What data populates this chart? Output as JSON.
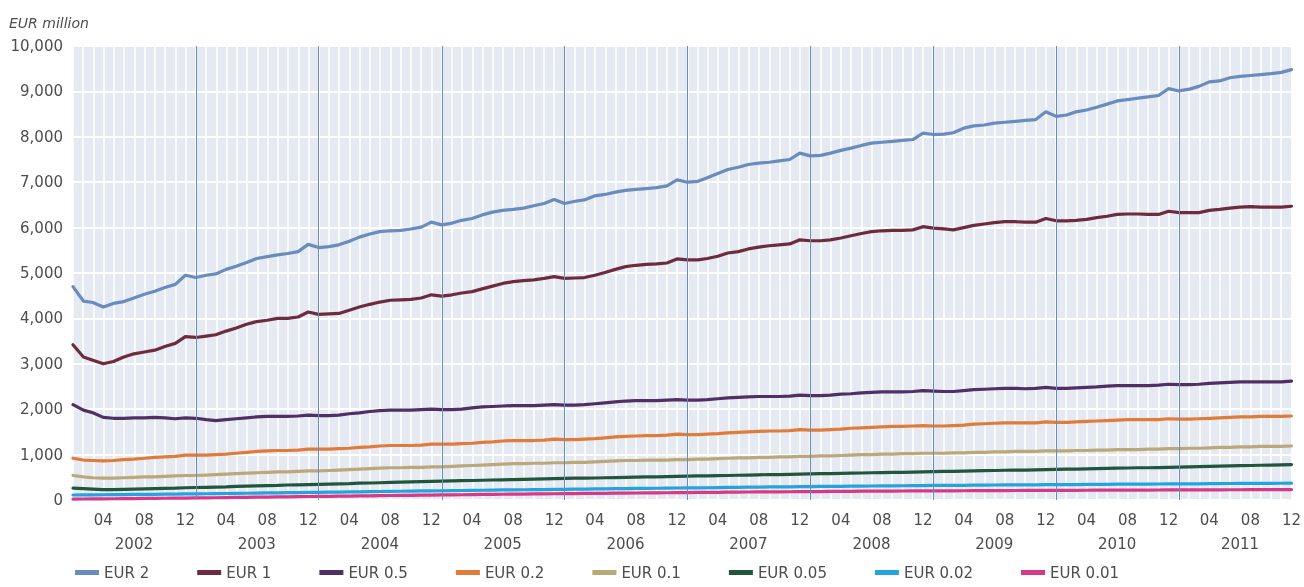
{
  "chart_data": {
    "type": "line",
    "ylabel": "EUR million",
    "legend": "bottom",
    "grid": true,
    "marker": "none",
    "line_style": "solid",
    "xlim": [
      "2002-01",
      "2011-12"
    ],
    "xticks": [
      {
        "value": "2002-04",
        "label": "04"
      },
      {
        "value": "2002-08",
        "label": "08"
      },
      {
        "value": "2002-12",
        "label": "12"
      },
      {
        "value": "2003-04",
        "label": "04"
      },
      {
        "value": "2003-08",
        "label": "08"
      },
      {
        "value": "2003-12",
        "label": "12"
      },
      {
        "value": "2004-04",
        "label": "04"
      },
      {
        "value": "2004-08",
        "label": "08"
      },
      {
        "value": "2004-12",
        "label": "12"
      },
      {
        "value": "2005-04",
        "label": "04"
      },
      {
        "value": "2005-08",
        "label": "08"
      },
      {
        "value": "2005-12",
        "label": "12"
      },
      {
        "value": "2006-04",
        "label": "04"
      },
      {
        "value": "2006-08",
        "label": "08"
      },
      {
        "value": "2006-12",
        "label": "12"
      },
      {
        "value": "2007-04",
        "label": "04"
      },
      {
        "value": "2007-08",
        "label": "08"
      },
      {
        "value": "2007-12",
        "label": "12"
      },
      {
        "value": "2008-04",
        "label": "04"
      },
      {
        "value": "2008-08",
        "label": "08"
      },
      {
        "value": "2008-12",
        "label": "12"
      },
      {
        "value": "2009-04",
        "label": "04"
      },
      {
        "value": "2009-08",
        "label": "08"
      },
      {
        "value": "2009-12",
        "label": "12"
      },
      {
        "value": "2010-04",
        "label": "04"
      },
      {
        "value": "2010-08",
        "label": "08"
      },
      {
        "value": "2010-12",
        "label": "12"
      },
      {
        "value": "2011-04",
        "label": "04"
      },
      {
        "value": "2011-08",
        "label": "08"
      },
      {
        "value": "2011-12",
        "label": "12"
      }
    ],
    "x2lim": [
      "2002-01",
      "2011-12"
    ],
    "x2ticks": [
      {
        "value": "2002-07",
        "label": "2002"
      },
      {
        "value": "2003-07",
        "label": "2003"
      },
      {
        "value": "2004-07",
        "label": "2004"
      },
      {
        "value": "2005-07",
        "label": "2005"
      },
      {
        "value": "2006-07",
        "label": "2006"
      },
      {
        "value": "2007-07",
        "label": "2007"
      },
      {
        "value": "2008-07",
        "label": "2008"
      },
      {
        "value": "2009-07",
        "label": "2009"
      },
      {
        "value": "2010-07",
        "label": "2010"
      },
      {
        "value": "2011-07",
        "label": "2011"
      }
    ],
    "ylim": [
      0,
      10000
    ],
    "yticks": [
      0,
      {
        "value": 1000,
        "label": "1,000"
      },
      {
        "value": 2000,
        "label": "2,000"
      },
      {
        "value": 3000,
        "label": "3,000"
      },
      {
        "value": 4000,
        "label": "4,000"
      },
      {
        "value": 5000,
        "label": "5,000"
      },
      {
        "value": 6000,
        "label": "6,000"
      },
      {
        "value": 7000,
        "label": "7,000"
      },
      {
        "value": 8000,
        "label": "8,000"
      },
      {
        "value": 9000,
        "label": "9,000"
      },
      {
        "value": 10000,
        "label": "10,000"
      }
    ],
    "ref_lines": [
      {
        "axis": "x",
        "value": "2003-01",
        "color": "#6b8cba"
      },
      {
        "axis": "x",
        "value": "2004-01",
        "color": "#6b8cba"
      },
      {
        "axis": "x",
        "value": "2005-01",
        "color": "#6b8cba"
      },
      {
        "axis": "x",
        "value": "2006-01",
        "color": "#6b8cba"
      },
      {
        "axis": "x",
        "value": "2007-01",
        "color": "#6b8cba"
      },
      {
        "axis": "x",
        "value": "2008-01",
        "color": "#6b8cba"
      },
      {
        "axis": "x",
        "value": "2009-01",
        "color": "#6b8cba"
      },
      {
        "axis": "x",
        "value": "2010-01",
        "color": "#6b8cba"
      },
      {
        "axis": "x",
        "value": "2011-01",
        "color": "#6b8cba"
      }
    ],
    "x": [
      "2002-01",
      "2002-02",
      "2002-03",
      "2002-04",
      "2002-05",
      "2002-06",
      "2002-07",
      "2002-08",
      "2002-09",
      "2002-10",
      "2002-11",
      "2002-12",
      "2003-01",
      "2003-02",
      "2003-03",
      "2003-04",
      "2003-05",
      "2003-06",
      "2003-07",
      "2003-08",
      "2003-09",
      "2003-10",
      "2003-11",
      "2003-12",
      "2004-01",
      "2004-02",
      "2004-03",
      "2004-04",
      "2004-05",
      "2004-06",
      "2004-07",
      "2004-08",
      "2004-09",
      "2004-10",
      "2004-11",
      "2004-12",
      "2005-01",
      "2005-02",
      "2005-03",
      "2005-04",
      "2005-05",
      "2005-06",
      "2005-07",
      "2005-08",
      "2005-09",
      "2005-10",
      "2005-11",
      "2005-12",
      "2006-01",
      "2006-02",
      "2006-03",
      "2006-04",
      "2006-05",
      "2006-06",
      "2006-07",
      "2006-08",
      "2006-09",
      "2006-10",
      "2006-11",
      "2006-12",
      "2007-01",
      "2007-02",
      "2007-03",
      "2007-04",
      "2007-05",
      "2007-06",
      "2007-07",
      "2007-08",
      "2007-09",
      "2007-10",
      "2007-11",
      "2007-12",
      "2008-01",
      "2008-02",
      "2008-03",
      "2008-04",
      "2008-05",
      "2008-06",
      "2008-07",
      "2008-08",
      "2008-09",
      "2008-10",
      "2008-11",
      "2008-12",
      "2009-01",
      "2009-02",
      "2009-03",
      "2009-04",
      "2009-05",
      "2009-06",
      "2009-07",
      "2009-08",
      "2009-09",
      "2009-10",
      "2009-11",
      "2009-12",
      "2010-01",
      "2010-02",
      "2010-03",
      "2010-04",
      "2010-05",
      "2010-06",
      "2010-07",
      "2010-08",
      "2010-09",
      "2010-10",
      "2010-11",
      "2010-12",
      "2011-01",
      "2011-02",
      "2011-03",
      "2011-04",
      "2011-05",
      "2011-06",
      "2011-07",
      "2011-08",
      "2011-09",
      "2011-10",
      "2011-11",
      "2011-12"
    ],
    "series": [
      {
        "name": "EUR 2",
        "color": "#6a8bbd",
        "values": [
          4700,
          4380,
          4350,
          4250,
          4330,
          4370,
          4450,
          4530,
          4600,
          4680,
          4750,
          4950,
          4900,
          4950,
          4980,
          5080,
          5150,
          5230,
          5320,
          5360,
          5400,
          5430,
          5470,
          5630,
          5560,
          5580,
          5620,
          5700,
          5790,
          5860,
          5910,
          5930,
          5940,
          5970,
          6010,
          6120,
          6060,
          6100,
          6160,
          6200,
          6280,
          6340,
          6380,
          6400,
          6430,
          6480,
          6530,
          6620,
          6530,
          6580,
          6610,
          6700,
          6730,
          6780,
          6820,
          6840,
          6860,
          6880,
          6920,
          7050,
          7000,
          7020,
          7100,
          7190,
          7280,
          7330,
          7390,
          7420,
          7440,
          7470,
          7500,
          7640,
          7580,
          7590,
          7640,
          7700,
          7750,
          7810,
          7860,
          7880,
          7900,
          7920,
          7940,
          8080,
          8050,
          8060,
          8090,
          8190,
          8240,
          8260,
          8300,
          8320,
          8340,
          8360,
          8380,
          8550,
          8450,
          8480,
          8550,
          8590,
          8650,
          8720,
          8790,
          8820,
          8850,
          8880,
          8910,
          9060,
          9010,
          9050,
          9110,
          9210,
          9230,
          9300,
          9330,
          9350,
          9370,
          9390,
          9420,
          9480
        ]
      },
      {
        "name": "EUR 1",
        "color": "#6e2b3c",
        "values": [
          3420,
          3150,
          3080,
          3000,
          3050,
          3150,
          3220,
          3260,
          3300,
          3380,
          3450,
          3600,
          3580,
          3610,
          3640,
          3720,
          3790,
          3870,
          3930,
          3960,
          4000,
          4000,
          4030,
          4140,
          4090,
          4100,
          4110,
          4180,
          4250,
          4310,
          4360,
          4400,
          4410,
          4420,
          4450,
          4520,
          4490,
          4520,
          4560,
          4590,
          4650,
          4710,
          4770,
          4810,
          4830,
          4850,
          4880,
          4920,
          4880,
          4890,
          4900,
          4950,
          5010,
          5080,
          5140,
          5170,
          5190,
          5200,
          5220,
          5310,
          5290,
          5290,
          5320,
          5370,
          5440,
          5470,
          5530,
          5570,
          5600,
          5620,
          5640,
          5730,
          5710,
          5710,
          5730,
          5770,
          5820,
          5870,
          5910,
          5930,
          5940,
          5940,
          5950,
          6020,
          5990,
          5970,
          5950,
          6000,
          6050,
          6080,
          6110,
          6130,
          6130,
          6120,
          6120,
          6200,
          6150,
          6150,
          6160,
          6180,
          6220,
          6250,
          6290,
          6300,
          6300,
          6290,
          6290,
          6360,
          6330,
          6330,
          6330,
          6380,
          6400,
          6430,
          6450,
          6460,
          6450,
          6450,
          6450,
          6470
        ]
      },
      {
        "name": "EUR 0.5",
        "color": "#4f2f64",
        "values": [
          2100,
          1980,
          1920,
          1820,
          1800,
          1800,
          1810,
          1810,
          1820,
          1810,
          1790,
          1810,
          1800,
          1770,
          1750,
          1770,
          1790,
          1810,
          1830,
          1840,
          1840,
          1840,
          1850,
          1870,
          1860,
          1860,
          1870,
          1900,
          1920,
          1950,
          1970,
          1980,
          1980,
          1980,
          1990,
          2000,
          1990,
          1990,
          2000,
          2030,
          2050,
          2060,
          2070,
          2080,
          2080,
          2080,
          2090,
          2100,
          2090,
          2090,
          2100,
          2120,
          2140,
          2160,
          2180,
          2190,
          2190,
          2190,
          2200,
          2210,
          2200,
          2200,
          2210,
          2230,
          2250,
          2260,
          2270,
          2280,
          2280,
          2280,
          2290,
          2310,
          2300,
          2300,
          2310,
          2330,
          2340,
          2360,
          2370,
          2380,
          2380,
          2380,
          2390,
          2410,
          2400,
          2390,
          2390,
          2410,
          2430,
          2440,
          2450,
          2460,
          2460,
          2450,
          2460,
          2480,
          2460,
          2460,
          2470,
          2480,
          2490,
          2510,
          2520,
          2520,
          2520,
          2520,
          2530,
          2550,
          2540,
          2540,
          2550,
          2570,
          2580,
          2590,
          2600,
          2600,
          2600,
          2600,
          2600,
          2620
        ]
      },
      {
        "name": "EUR 0.2",
        "color": "#e07b39",
        "values": [
          920,
          880,
          870,
          860,
          870,
          890,
          900,
          920,
          940,
          950,
          960,
          990,
          990,
          990,
          1000,
          1010,
          1030,
          1050,
          1070,
          1080,
          1090,
          1090,
          1100,
          1120,
          1120,
          1120,
          1130,
          1140,
          1160,
          1170,
          1190,
          1200,
          1200,
          1200,
          1210,
          1230,
          1230,
          1230,
          1240,
          1250,
          1270,
          1280,
          1300,
          1310,
          1310,
          1310,
          1320,
          1340,
          1330,
          1330,
          1340,
          1350,
          1370,
          1390,
          1400,
          1410,
          1420,
          1420,
          1430,
          1450,
          1440,
          1440,
          1450,
          1460,
          1480,
          1490,
          1500,
          1510,
          1520,
          1520,
          1530,
          1550,
          1540,
          1540,
          1550,
          1560,
          1580,
          1590,
          1600,
          1610,
          1620,
          1620,
          1630,
          1640,
          1630,
          1630,
          1640,
          1650,
          1670,
          1680,
          1690,
          1700,
          1700,
          1700,
          1700,
          1720,
          1710,
          1710,
          1720,
          1730,
          1740,
          1750,
          1760,
          1770,
          1770,
          1770,
          1770,
          1790,
          1780,
          1780,
          1790,
          1800,
          1810,
          1820,
          1830,
          1830,
          1840,
          1840,
          1840,
          1850
        ]
      },
      {
        "name": "EUR 0.1",
        "color": "#bba878",
        "values": [
          540,
          510,
          490,
          480,
          480,
          490,
          500,
          510,
          510,
          520,
          530,
          540,
          540,
          550,
          560,
          570,
          580,
          590,
          600,
          610,
          620,
          620,
          630,
          640,
          640,
          650,
          660,
          670,
          680,
          690,
          700,
          710,
          710,
          720,
          720,
          730,
          730,
          740,
          750,
          760,
          770,
          780,
          790,
          800,
          800,
          810,
          810,
          820,
          820,
          830,
          830,
          840,
          850,
          860,
          870,
          870,
          880,
          880,
          880,
          890,
          890,
          900,
          900,
          910,
          920,
          930,
          930,
          940,
          940,
          950,
          950,
          960,
          960,
          970,
          970,
          980,
          990,
          1000,
          1000,
          1010,
          1010,
          1020,
          1020,
          1030,
          1030,
          1030,
          1040,
          1040,
          1050,
          1050,
          1060,
          1060,
          1070,
          1070,
          1070,
          1080,
          1080,
          1080,
          1090,
          1090,
          1100,
          1100,
          1110,
          1110,
          1110,
          1120,
          1120,
          1130,
          1130,
          1140,
          1140,
          1150,
          1160,
          1160,
          1170,
          1170,
          1180,
          1180,
          1180,
          1190
        ]
      },
      {
        "name": "EUR 0.05",
        "color": "#21553c",
        "values": [
          260,
          250,
          240,
          230,
          230,
          235,
          240,
          245,
          250,
          255,
          260,
          270,
          275,
          280,
          285,
          290,
          300,
          305,
          310,
          315,
          320,
          330,
          335,
          340,
          345,
          350,
          355,
          360,
          370,
          375,
          380,
          390,
          395,
          400,
          405,
          410,
          415,
          420,
          425,
          430,
          435,
          440,
          445,
          450,
          455,
          460,
          465,
          470,
          475,
          480,
          480,
          485,
          490,
          495,
          500,
          505,
          510,
          510,
          515,
          520,
          525,
          530,
          530,
          535,
          540,
          545,
          550,
          555,
          560,
          560,
          565,
          570,
          575,
          580,
          580,
          585,
          590,
          595,
          600,
          605,
          610,
          610,
          615,
          620,
          625,
          630,
          630,
          635,
          640,
          645,
          650,
          655,
          660,
          660,
          665,
          670,
          675,
          680,
          680,
          685,
          690,
          695,
          700,
          705,
          710,
          710,
          715,
          720,
          725,
          730,
          735,
          740,
          745,
          750,
          755,
          760,
          765,
          770,
          775,
          780
        ]
      },
      {
        "name": "EUR 0.02",
        "color": "#25a3e0",
        "values": [
          110,
          112,
          114,
          116,
          118,
          120,
          122,
          124,
          126,
          128,
          130,
          134,
          136,
          138,
          140,
          143,
          146,
          149,
          152,
          155,
          158,
          161,
          164,
          168,
          170,
          172,
          175,
          178,
          181,
          184,
          187,
          190,
          193,
          196,
          199,
          202,
          204,
          206,
          209,
          212,
          215,
          218,
          221,
          224,
          226,
          228,
          230,
          234,
          236,
          238,
          240,
          243,
          246,
          249,
          252,
          255,
          257,
          259,
          261,
          264,
          266,
          268,
          270,
          273,
          276,
          279,
          282,
          285,
          287,
          289,
          291,
          294,
          296,
          298,
          300,
          302,
          304,
          306,
          308,
          310,
          312,
          314,
          316,
          318,
          320,
          321,
          322,
          324,
          326,
          328,
          330,
          332,
          333,
          334,
          335,
          337,
          338,
          339,
          340,
          342,
          344,
          346,
          348,
          349,
          350,
          351,
          352,
          354,
          355,
          356,
          357,
          359,
          361,
          363,
          365,
          366,
          367,
          368,
          369,
          370
        ]
      },
      {
        "name": "EUR 0.01",
        "color": "#d63a87",
        "values": [
          20,
          22,
          24,
          26,
          28,
          30,
          32,
          34,
          36,
          38,
          40,
          43,
          45,
          47,
          50,
          53,
          56,
          59,
          62,
          65,
          68,
          71,
          74,
          77,
          79,
          81,
          84,
          87,
          90,
          93,
          96,
          99,
          102,
          104,
          106,
          109,
          111,
          113,
          116,
          119,
          122,
          125,
          127,
          129,
          131,
          133,
          135,
          138,
          140,
          142,
          144,
          146,
          148,
          150,
          152,
          154,
          156,
          158,
          160,
          162,
          164,
          166,
          168,
          170,
          172,
          174,
          176,
          178,
          180,
          181,
          182,
          184,
          185,
          186,
          188,
          190,
          192,
          194,
          195,
          196,
          197,
          198,
          199,
          200,
          201,
          202,
          203,
          204,
          205,
          206,
          207,
          208,
          209,
          210,
          211,
          212,
          213,
          213,
          214,
          215,
          216,
          217,
          218,
          218,
          219,
          219,
          220,
          221,
          221,
          222,
          223,
          224,
          225,
          226,
          226,
          227,
          228,
          228,
          229,
          230
        ]
      }
    ]
  }
}
